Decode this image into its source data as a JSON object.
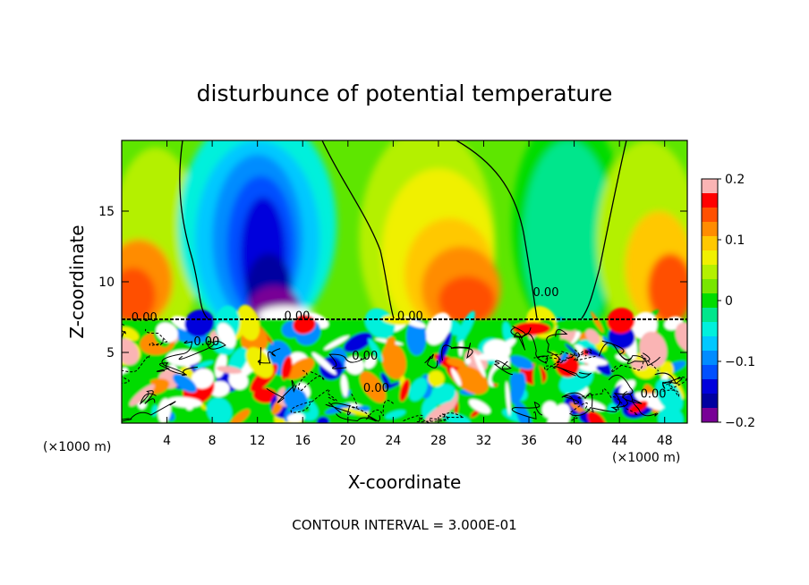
{
  "chart_data": {
    "type": "heatmap",
    "title": "disturbunce of potential temperature",
    "xlabel": "X-coordinate",
    "ylabel": "Z-coordinate",
    "x_unit_left": "(×1000 m)",
    "x_unit_right": "(×1000 m)",
    "footer": "CONTOUR INTERVAL = 3.000E-01",
    "xlim": [
      0,
      50
    ],
    "ylim": [
      0,
      20
    ],
    "x_ticks": [
      4,
      8,
      12,
      16,
      20,
      24,
      28,
      32,
      36,
      40,
      44,
      48
    ],
    "x_tick_labels": [
      "4",
      "8",
      "12",
      "16",
      "20",
      "24",
      "28",
      "32",
      "36",
      "40",
      "44",
      "48"
    ],
    "y_ticks": [
      5,
      10,
      15
    ],
    "y_tick_labels": [
      "5",
      "10",
      "15"
    ],
    "colorbar": {
      "range": [
        -0.2,
        0.2
      ],
      "tick_values": [
        0.2,
        0.1,
        0,
        -0.1,
        -0.2
      ],
      "tick_labels": [
        "0.2",
        "0.1",
        "0",
        "−0.1",
        "−0.2"
      ],
      "colors": [
        "#fab4b4",
        "#ff0000",
        "#ff5000",
        "#ff8c00",
        "#ffc800",
        "#f0f000",
        "#b4f000",
        "#78e600",
        "#00dc00",
        "#00e68c",
        "#00f0dc",
        "#00c8ff",
        "#008cff",
        "#0050ff",
        "#0000dc",
        "#0000a0",
        "#780096"
      ]
    },
    "contour_labels": [
      {
        "text": "0.00",
        "x": 2.0,
        "z": 7.2
      },
      {
        "text": "0.00",
        "x": 15.5,
        "z": 7.3
      },
      {
        "text": "0.00",
        "x": 25.5,
        "z": 7.3
      },
      {
        "text": "0.00",
        "x": 37.5,
        "z": 9.0
      },
      {
        "text": "0.00",
        "x": 7.5,
        "z": 5.5
      },
      {
        "text": "0.00",
        "x": 21.5,
        "z": 4.5
      },
      {
        "text": "0.00",
        "x": 22.5,
        "z": 2.2
      },
      {
        "text": "0.00",
        "x": 47.0,
        "z": 1.8
      }
    ],
    "fields": {
      "background": "#5ee600",
      "layer_boundary_z": 7.3,
      "upper": [
        {
          "kind": "ellipse",
          "x": 3,
          "z": 12.5,
          "rx": 4,
          "rz": 7,
          "color": "#b4f000"
        },
        {
          "kind": "ellipse",
          "x": 1.5,
          "z": 10,
          "rx": 3,
          "rz": 3,
          "color": "#ff8c00"
        },
        {
          "kind": "ellipse",
          "x": 1,
          "z": 9,
          "rx": 2,
          "rz": 2,
          "color": "#ff5000"
        },
        {
          "kind": "ellipse",
          "x": 12,
          "z": 14,
          "rx": 7,
          "rz": 8,
          "color": "#00f0dc"
        },
        {
          "kind": "ellipse",
          "x": 12,
          "z": 13,
          "rx": 5.5,
          "rz": 7,
          "color": "#00c8ff"
        },
        {
          "kind": "ellipse",
          "x": 12,
          "z": 13,
          "rx": 4,
          "rz": 6,
          "color": "#008cff"
        },
        {
          "kind": "ellipse",
          "x": 12.3,
          "z": 12.5,
          "rx": 3,
          "rz": 5,
          "color": "#0050ff"
        },
        {
          "kind": "ellipse",
          "x": 12.5,
          "z": 12,
          "rx": 2,
          "rz": 4,
          "color": "#0000dc"
        },
        {
          "kind": "ellipse",
          "x": 13,
          "z": 9.5,
          "rx": 2,
          "rz": 2.5,
          "color": "#0000a0"
        },
        {
          "kind": "ellipse",
          "x": 13.5,
          "z": 8.2,
          "rx": 2.2,
          "rz": 1.5,
          "color": "#780096"
        },
        {
          "kind": "ellipse",
          "x": 14.5,
          "z": 7.6,
          "rx": 2.5,
          "rz": 0.7,
          "color": "#ffffff"
        },
        {
          "kind": "ellipse",
          "x": 27,
          "z": 13,
          "rx": 6,
          "rz": 8,
          "color": "#b4f000"
        },
        {
          "kind": "ellipse",
          "x": 28,
          "z": 12,
          "rx": 5,
          "rz": 6,
          "color": "#f0f000"
        },
        {
          "kind": "ellipse",
          "x": 29,
          "z": 10.5,
          "rx": 4,
          "rz": 4,
          "color": "#ffc800"
        },
        {
          "kind": "ellipse",
          "x": 30,
          "z": 9.5,
          "rx": 3.5,
          "rz": 3,
          "color": "#ff8c00"
        },
        {
          "kind": "ellipse",
          "x": 30.5,
          "z": 8.7,
          "rx": 2.5,
          "rz": 1.7,
          "color": "#ff5000"
        },
        {
          "kind": "ellipse",
          "x": 39.5,
          "z": 14,
          "rx": 5,
          "rz": 8,
          "color": "#00dc00"
        },
        {
          "kind": "ellipse",
          "x": 39.5,
          "z": 13,
          "rx": 4,
          "rz": 7,
          "color": "#00e68c"
        },
        {
          "kind": "ellipse",
          "x": 46.5,
          "z": 13,
          "rx": 4.5,
          "rz": 7,
          "color": "#b4f000"
        },
        {
          "kind": "ellipse",
          "x": 47.5,
          "z": 11,
          "rx": 3,
          "rz": 4,
          "color": "#ffc800"
        },
        {
          "kind": "ellipse",
          "x": 48.5,
          "z": 9.5,
          "rx": 2,
          "rz": 2.5,
          "color": "#ff5000"
        }
      ],
      "lower_palette": [
        "#ffffff",
        "#ffffff",
        "#ffffff",
        "#ff0000",
        "#ff8c00",
        "#008cff",
        "#0000dc",
        "#00dc00",
        "#00f0dc",
        "#f0f000",
        "#fab4b4",
        "#ffffff"
      ]
    }
  }
}
